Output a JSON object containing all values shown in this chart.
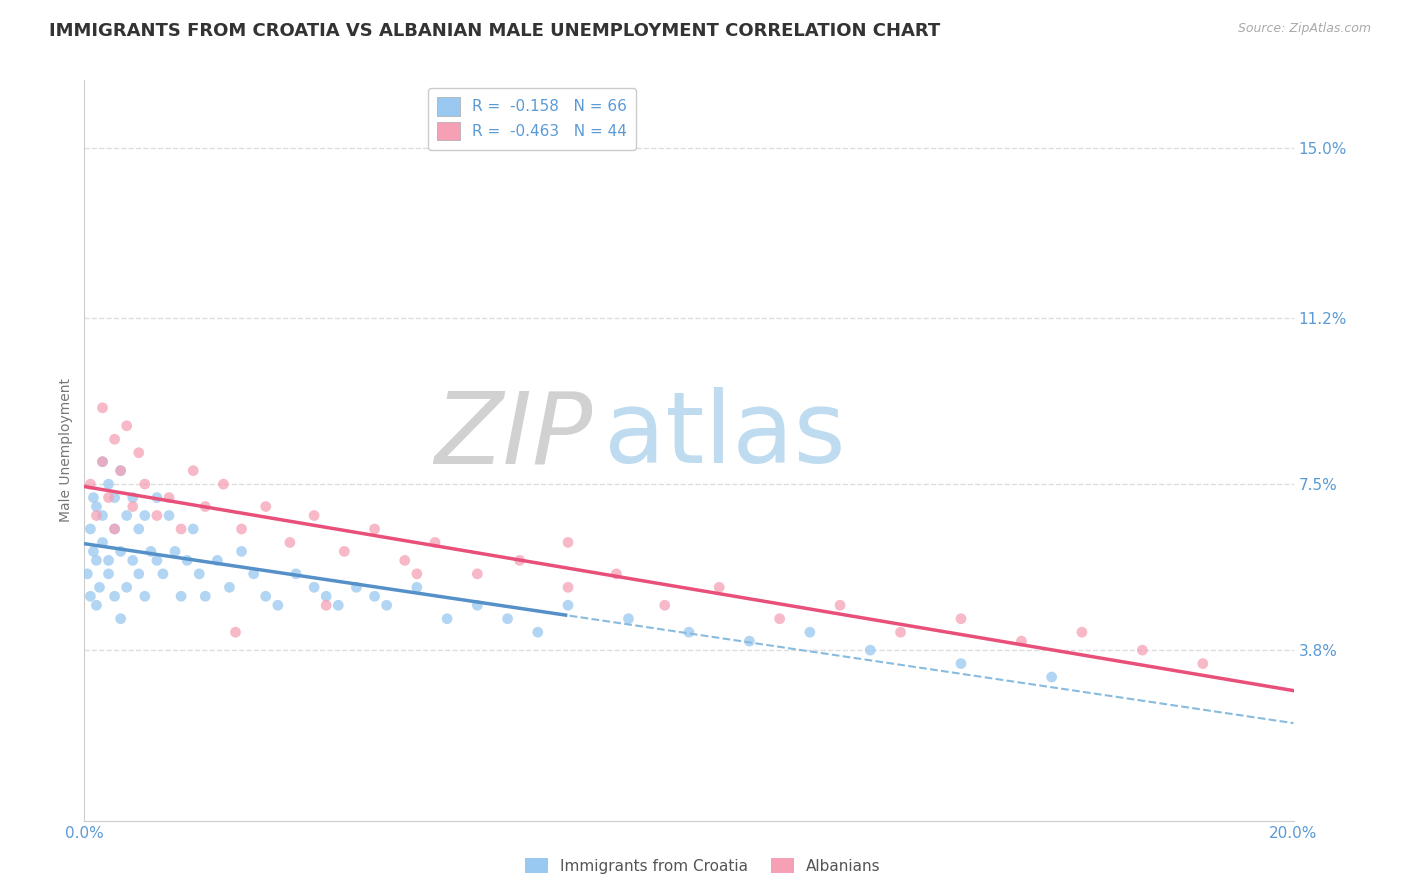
{
  "title": "IMMIGRANTS FROM CROATIA VS ALBANIAN MALE UNEMPLOYMENT CORRELATION CHART",
  "source_text": "Source: ZipAtlas.com",
  "ylabel": "Male Unemployment",
  "xlim": [
    0.0,
    0.2
  ],
  "ylim": [
    0.0,
    0.165
  ],
  "yticks": [
    0.038,
    0.075,
    0.112,
    0.15
  ],
  "ytick_labels": [
    "3.8%",
    "7.5%",
    "11.2%",
    "15.0%"
  ],
  "croatia_x": [
    0.0005,
    0.001,
    0.001,
    0.0015,
    0.0015,
    0.002,
    0.002,
    0.002,
    0.0025,
    0.003,
    0.003,
    0.003,
    0.004,
    0.004,
    0.004,
    0.005,
    0.005,
    0.005,
    0.006,
    0.006,
    0.006,
    0.007,
    0.007,
    0.008,
    0.008,
    0.009,
    0.009,
    0.01,
    0.01,
    0.011,
    0.012,
    0.012,
    0.013,
    0.014,
    0.015,
    0.016,
    0.017,
    0.018,
    0.019,
    0.02,
    0.022,
    0.024,
    0.026,
    0.028,
    0.03,
    0.032,
    0.035,
    0.038,
    0.04,
    0.042,
    0.045,
    0.048,
    0.05,
    0.055,
    0.06,
    0.065,
    0.07,
    0.075,
    0.08,
    0.09,
    0.1,
    0.11,
    0.12,
    0.13,
    0.145,
    0.16
  ],
  "croatia_y": [
    0.055,
    0.065,
    0.05,
    0.06,
    0.072,
    0.048,
    0.058,
    0.07,
    0.052,
    0.062,
    0.08,
    0.068,
    0.055,
    0.075,
    0.058,
    0.05,
    0.065,
    0.072,
    0.06,
    0.045,
    0.078,
    0.052,
    0.068,
    0.058,
    0.072,
    0.055,
    0.065,
    0.05,
    0.068,
    0.06,
    0.058,
    0.072,
    0.055,
    0.068,
    0.06,
    0.05,
    0.058,
    0.065,
    0.055,
    0.05,
    0.058,
    0.052,
    0.06,
    0.055,
    0.05,
    0.048,
    0.055,
    0.052,
    0.05,
    0.048,
    0.052,
    0.05,
    0.048,
    0.052,
    0.045,
    0.048,
    0.045,
    0.042,
    0.048,
    0.045,
    0.042,
    0.04,
    0.042,
    0.038,
    0.035,
    0.032
  ],
  "albanian_x": [
    0.001,
    0.002,
    0.003,
    0.003,
    0.004,
    0.005,
    0.005,
    0.006,
    0.007,
    0.008,
    0.009,
    0.01,
    0.012,
    0.014,
    0.016,
    0.018,
    0.02,
    0.023,
    0.026,
    0.03,
    0.034,
    0.038,
    0.043,
    0.048,
    0.053,
    0.058,
    0.065,
    0.072,
    0.08,
    0.088,
    0.096,
    0.105,
    0.115,
    0.125,
    0.135,
    0.145,
    0.155,
    0.165,
    0.175,
    0.185,
    0.08,
    0.055,
    0.04,
    0.025
  ],
  "albanian_y": [
    0.075,
    0.068,
    0.08,
    0.092,
    0.072,
    0.085,
    0.065,
    0.078,
    0.088,
    0.07,
    0.082,
    0.075,
    0.068,
    0.072,
    0.065,
    0.078,
    0.07,
    0.075,
    0.065,
    0.07,
    0.062,
    0.068,
    0.06,
    0.065,
    0.058,
    0.062,
    0.055,
    0.058,
    0.052,
    0.055,
    0.048,
    0.052,
    0.045,
    0.048,
    0.042,
    0.045,
    0.04,
    0.042,
    0.038,
    0.035,
    0.062,
    0.055,
    0.048,
    0.042
  ],
  "watermark_zip_color": "#C8D8E8",
  "watermark_atlas_color": "#A8C8E0",
  "background_color": "#FFFFFF",
  "grid_color": "#DDDDDD",
  "tick_color": "#5B9BD5",
  "croatia_color": "#99C8F0",
  "albanian_color": "#F5A0B5",
  "croatia_line_color": "#5590C8",
  "albanian_line_color": "#E8507A",
  "dashed_line_color": "#88BBDD",
  "title_fontsize": 13,
  "axis_label_fontsize": 10,
  "tick_fontsize": 11,
  "legend_R1": "R =  -0.158",
  "legend_N1": "N = 66",
  "legend_R2": "R =  -0.463",
  "legend_N2": "N = 44",
  "legend_name1": "Immigrants from Croatia",
  "legend_name2": "Albanians"
}
